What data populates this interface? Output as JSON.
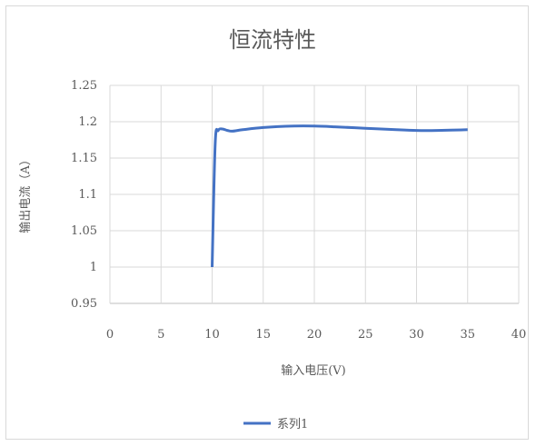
{
  "chart_data": {
    "type": "line",
    "title": "恒流特性",
    "xlabel": "输入电压(V)",
    "ylabel": "输出电流（A）",
    "xlim": [
      0,
      40
    ],
    "ylim": [
      0.95,
      1.25
    ],
    "xticks": [
      "0",
      "5",
      "10",
      "15",
      "20",
      "25",
      "30",
      "35",
      "40"
    ],
    "yticks": [
      "0.95",
      "1",
      "1.05",
      "1.1",
      "1.15",
      "1.2",
      "1.25"
    ],
    "grid": true,
    "legend_position": "bottom",
    "series": [
      {
        "name": "系列1",
        "color": "#4472c4",
        "x": [
          10,
          10.3,
          10.6,
          11,
          11.5,
          12,
          13,
          15,
          18,
          20,
          22,
          25,
          28,
          30,
          32,
          35
        ],
        "y": [
          1.0,
          1.17,
          1.188,
          1.19,
          1.188,
          1.187,
          1.189,
          1.192,
          1.194,
          1.194,
          1.193,
          1.191,
          1.189,
          1.188,
          1.188,
          1.189
        ]
      }
    ]
  }
}
